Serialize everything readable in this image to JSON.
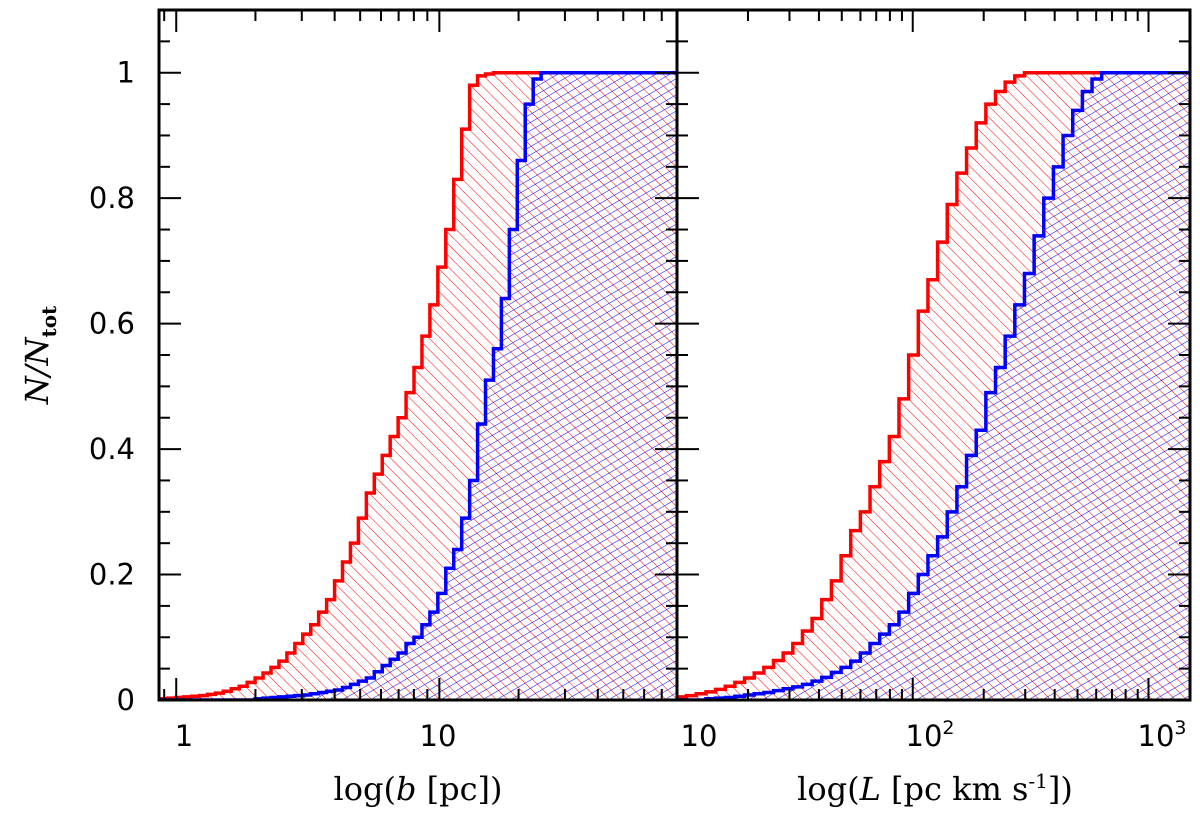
{
  "chart_data": [
    {
      "type": "step-histogram-cumulative",
      "panel": "left",
      "xscale": "log",
      "xlabel_prefix": "log(",
      "xlabel_var": "b",
      "xlabel_units": " [pc])",
      "ylabel_main": "N/N",
      "ylabel_sub": "tot",
      "xlim": [
        0.86,
        80
      ],
      "ylim": [
        0,
        1.1
      ],
      "x_tick_labels": [
        "1",
        "10"
      ],
      "y_tick_labels": [
        "0",
        "0.2",
        "0.4",
        "0.6",
        "0.8",
        "1"
      ],
      "bin_edges_log10": [
        -0.0625,
        1.9
      ],
      "series": [
        {
          "name": "red",
          "color": "#ff0000",
          "hatch": "diagonal-back",
          "values": [
            0.002,
            0.003,
            0.004,
            0.005,
            0.006,
            0.007,
            0.009,
            0.011,
            0.014,
            0.018,
            0.022,
            0.028,
            0.035,
            0.043,
            0.052,
            0.062,
            0.075,
            0.09,
            0.105,
            0.12,
            0.14,
            0.16,
            0.19,
            0.22,
            0.25,
            0.29,
            0.33,
            0.36,
            0.39,
            0.42,
            0.45,
            0.49,
            0.53,
            0.58,
            0.63,
            0.69,
            0.75,
            0.83,
            0.91,
            0.98,
            0.995,
            0.998,
            1.0,
            1.0,
            1.0,
            1.0,
            1.0,
            1.0,
            1.0,
            1.0,
            1.0,
            1.0,
            1.0,
            1.0,
            1.0,
            1.0,
            1.0,
            1.0,
            1.0,
            1.0,
            1.0,
            1.0,
            1.0,
            1.0,
            1.0
          ]
        },
        {
          "name": "blue",
          "color": "#0000ff",
          "hatch": "diagonal-forward",
          "values": [
            0,
            0,
            0,
            0,
            0,
            0,
            0,
            0,
            0,
            0,
            0,
            0,
            0.002,
            0.003,
            0.004,
            0.005,
            0.006,
            0.007,
            0.008,
            0.01,
            0.012,
            0.014,
            0.016,
            0.02,
            0.025,
            0.03,
            0.035,
            0.045,
            0.055,
            0.065,
            0.075,
            0.09,
            0.1,
            0.12,
            0.14,
            0.17,
            0.21,
            0.24,
            0.29,
            0.35,
            0.44,
            0.51,
            0.56,
            0.64,
            0.75,
            0.86,
            0.95,
            0.99,
            1.0,
            1.0,
            1.0,
            1.0,
            1.0,
            1.0,
            1.0,
            1.0,
            1.0,
            1.0,
            1.0,
            1.0,
            1.0,
            1.0,
            1.0,
            1.0,
            1.0
          ]
        }
      ]
    },
    {
      "type": "step-histogram-cumulative",
      "panel": "right",
      "xscale": "log",
      "xlabel_prefix": "log(",
      "xlabel_var": "L",
      "xlabel_units": " [pc km s",
      "xlabel_sup": "-1",
      "xlabel_suffix": "])",
      "xlim": [
        10,
        1500
      ],
      "ylim": [
        0,
        1.1
      ],
      "x_tick_labels": [
        {
          "base": "10",
          "exp": ""
        },
        {
          "base": "10",
          "exp": "2"
        },
        {
          "base": "10",
          "exp": "3"
        }
      ],
      "bin_edges_log10": [
        1.0,
        3.17
      ],
      "series": [
        {
          "name": "red",
          "color": "#ff0000",
          "hatch": "diagonal-back",
          "values": [
            0.005,
            0.007,
            0.01,
            0.013,
            0.017,
            0.022,
            0.028,
            0.035,
            0.043,
            0.052,
            0.063,
            0.075,
            0.09,
            0.11,
            0.13,
            0.16,
            0.19,
            0.23,
            0.27,
            0.3,
            0.34,
            0.38,
            0.42,
            0.48,
            0.55,
            0.62,
            0.67,
            0.73,
            0.79,
            0.84,
            0.88,
            0.92,
            0.95,
            0.97,
            0.985,
            0.995,
            1.0,
            1.0,
            1.0,
            1.0,
            1.0,
            1.0,
            1.0,
            1.0,
            1.0,
            1.0,
            1.0,
            1.0,
            1.0,
            1.0,
            1.0,
            1.0,
            1.0
          ]
        },
        {
          "name": "blue",
          "color": "#0000ff",
          "hatch": "diagonal-forward",
          "values": [
            0,
            0,
            0,
            0.002,
            0.003,
            0.004,
            0.006,
            0.008,
            0.01,
            0.012,
            0.015,
            0.018,
            0.021,
            0.025,
            0.03,
            0.036,
            0.044,
            0.052,
            0.062,
            0.075,
            0.09,
            0.105,
            0.12,
            0.14,
            0.17,
            0.2,
            0.23,
            0.26,
            0.3,
            0.34,
            0.39,
            0.43,
            0.49,
            0.53,
            0.58,
            0.63,
            0.68,
            0.74,
            0.8,
            0.85,
            0.9,
            0.94,
            0.97,
            0.99,
            1.0,
            1.0,
            1.0,
            1.0,
            1.0,
            1.0,
            1.0,
            1.0,
            1.0
          ]
        }
      ]
    }
  ]
}
